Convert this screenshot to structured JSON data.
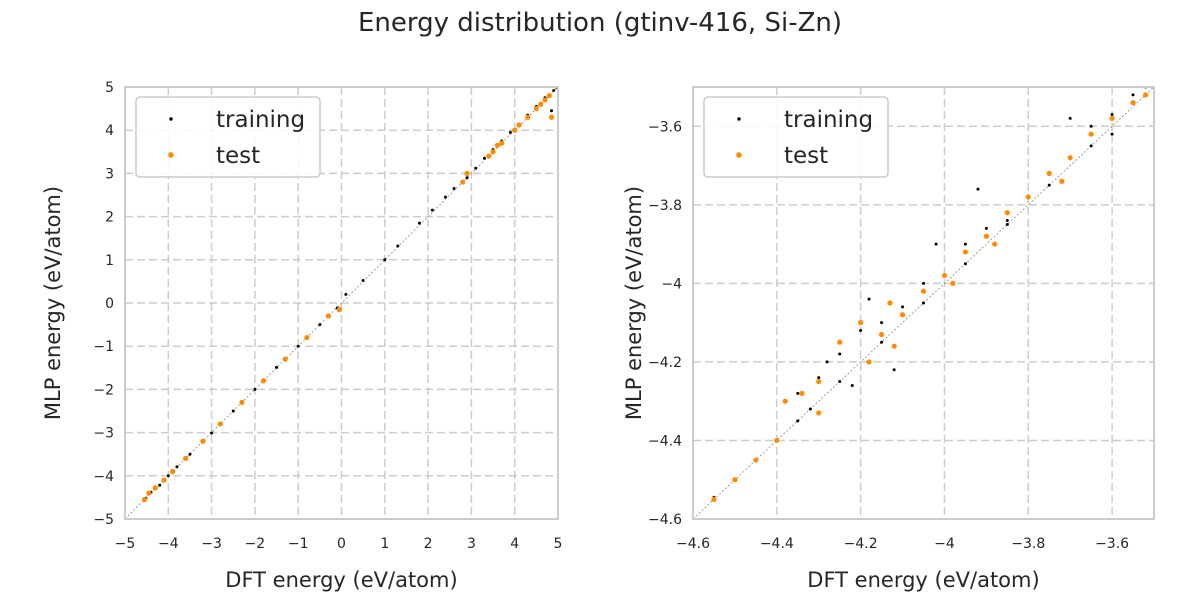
{
  "figure": {
    "title": "Energy distribution (gtinv-416, Si-Zn)"
  },
  "chart_data": [
    {
      "type": "scatter",
      "xlabel": "DFT energy (eV/atom)",
      "ylabel": "MLP energy (eV/atom)",
      "xlim": [
        -5,
        5
      ],
      "ylim": [
        -5,
        5
      ],
      "xticks": [
        -5,
        -4,
        -3,
        -2,
        -1,
        0,
        1,
        2,
        3,
        4,
        5
      ],
      "yticks": [
        -5,
        -4,
        -3,
        -2,
        -1,
        0,
        1,
        2,
        3,
        4,
        5
      ],
      "grid": true,
      "legend_position": "top-left",
      "diagonal_reference": true,
      "series": [
        {
          "name": "training",
          "color": "#000000",
          "points": [
            [
              -4.52,
              -4.52
            ],
            [
              -4.4,
              -4.38
            ],
            [
              -4.2,
              -4.22
            ],
            [
              -4.0,
              -4.0
            ],
            [
              -3.8,
              -3.79
            ],
            [
              -3.5,
              -3.5
            ],
            [
              -3.0,
              -3.01
            ],
            [
              -2.5,
              -2.5
            ],
            [
              -2.0,
              -2.0
            ],
            [
              -1.5,
              -1.49
            ],
            [
              -1.0,
              -1.0
            ],
            [
              -0.5,
              -0.5
            ],
            [
              -0.1,
              -0.12
            ],
            [
              0.1,
              0.2
            ],
            [
              0.5,
              0.52
            ],
            [
              1.0,
              1.0
            ],
            [
              1.3,
              1.32
            ],
            [
              1.8,
              1.85
            ],
            [
              2.1,
              2.15
            ],
            [
              2.4,
              2.45
            ],
            [
              2.6,
              2.65
            ],
            [
              2.9,
              2.9
            ],
            [
              3.1,
              3.12
            ],
            [
              3.3,
              3.35
            ],
            [
              3.5,
              3.55
            ],
            [
              3.7,
              3.75
            ],
            [
              3.9,
              3.95
            ],
            [
              4.1,
              4.1
            ],
            [
              4.3,
              4.35
            ],
            [
              4.5,
              4.55
            ],
            [
              4.6,
              4.62
            ],
            [
              4.7,
              4.75
            ],
            [
              4.8,
              4.78
            ],
            [
              4.9,
              4.92
            ],
            [
              4.95,
              5.0
            ],
            [
              4.85,
              4.45
            ]
          ]
        },
        {
          "name": "test",
          "color": "#ff8c00",
          "points": [
            [
              -4.55,
              -4.55
            ],
            [
              -4.45,
              -4.4
            ],
            [
              -4.3,
              -4.28
            ],
            [
              -4.1,
              -4.1
            ],
            [
              -3.9,
              -3.9
            ],
            [
              -3.6,
              -3.6
            ],
            [
              -3.2,
              -3.2
            ],
            [
              -2.8,
              -2.8
            ],
            [
              -2.3,
              -2.3
            ],
            [
              -1.8,
              -1.8
            ],
            [
              -1.3,
              -1.3
            ],
            [
              -0.8,
              -0.8
            ],
            [
              -0.3,
              -0.3
            ],
            [
              -0.05,
              -0.15
            ],
            [
              2.8,
              2.8
            ],
            [
              2.9,
              3.0
            ],
            [
              3.4,
              3.4
            ],
            [
              3.5,
              3.5
            ],
            [
              3.6,
              3.65
            ],
            [
              3.7,
              3.7
            ],
            [
              4.0,
              4.0
            ],
            [
              4.1,
              4.12
            ],
            [
              4.3,
              4.3
            ],
            [
              4.5,
              4.5
            ],
            [
              4.6,
              4.6
            ],
            [
              4.7,
              4.7
            ],
            [
              4.8,
              4.8
            ],
            [
              4.85,
              4.3
            ]
          ]
        }
      ]
    },
    {
      "type": "scatter",
      "xlabel": "DFT energy (eV/atom)",
      "ylabel": "MLP energy (eV/atom)",
      "xlim": [
        -4.6,
        -3.5
      ],
      "ylim": [
        -4.6,
        -3.5
      ],
      "xticks": [
        -4.6,
        -4.4,
        -4.2,
        -4.0,
        -3.8,
        -3.6
      ],
      "yticks": [
        -4.6,
        -4.4,
        -4.2,
        -4.0,
        -3.8,
        -3.6
      ],
      "grid": true,
      "legend_position": "top-left",
      "diagonal_reference": true,
      "series": [
        {
          "name": "training",
          "color": "#000000",
          "points": [
            [
              -4.55,
              -4.545
            ],
            [
              -4.5,
              -4.5
            ],
            [
              -4.45,
              -4.45
            ],
            [
              -4.4,
              -4.4
            ],
            [
              -4.35,
              -4.28
            ],
            [
              -4.3,
              -4.24
            ],
            [
              -4.28,
              -4.2
            ],
            [
              -4.25,
              -4.18
            ],
            [
              -4.2,
              -4.12
            ],
            [
              -4.15,
              -4.1
            ],
            [
              -4.1,
              -4.06
            ],
            [
              -4.05,
              -4.0
            ],
            [
              -4.0,
              -3.98
            ],
            [
              -3.95,
              -3.9
            ],
            [
              -3.9,
              -3.86
            ],
            [
              -3.85,
              -3.84
            ],
            [
              -3.8,
              -3.78
            ],
            [
              -3.75,
              -3.72
            ],
            [
              -3.7,
              -3.68
            ],
            [
              -3.65,
              -3.6
            ],
            [
              -3.6,
              -3.57
            ],
            [
              -3.55,
              -3.52
            ],
            [
              -3.52,
              -3.5
            ],
            [
              -3.58,
              -3.48
            ],
            [
              -4.35,
              -4.35
            ],
            [
              -4.25,
              -4.25
            ],
            [
              -4.15,
              -4.15
            ],
            [
              -4.05,
              -4.05
            ],
            [
              -3.95,
              -3.95
            ],
            [
              -3.85,
              -3.85
            ],
            [
              -3.75,
              -3.75
            ],
            [
              -3.65,
              -3.65
            ],
            [
              -4.12,
              -4.22
            ],
            [
              -4.18,
              -4.04
            ],
            [
              -4.02,
              -3.9
            ],
            [
              -3.92,
              -3.76
            ],
            [
              -3.7,
              -3.58
            ],
            [
              -4.32,
              -4.32
            ],
            [
              -4.22,
              -4.26
            ],
            [
              -3.6,
              -3.62
            ]
          ]
        },
        {
          "name": "test",
          "color": "#ff8c00",
          "points": [
            [
              -4.55,
              -4.55
            ],
            [
              -4.5,
              -4.5
            ],
            [
              -4.45,
              -4.45
            ],
            [
              -4.4,
              -4.4
            ],
            [
              -4.38,
              -4.3
            ],
            [
              -4.34,
              -4.28
            ],
            [
              -4.3,
              -4.33
            ],
            [
              -4.25,
              -4.15
            ],
            [
              -4.2,
              -4.1
            ],
            [
              -4.18,
              -4.2
            ],
            [
              -4.15,
              -4.13
            ],
            [
              -4.13,
              -4.05
            ],
            [
              -4.1,
              -4.08
            ],
            [
              -4.05,
              -4.02
            ],
            [
              -4.0,
              -3.98
            ],
            [
              -3.95,
              -3.92
            ],
            [
              -3.9,
              -3.88
            ],
            [
              -3.85,
              -3.82
            ],
            [
              -3.8,
              -3.78
            ],
            [
              -3.75,
              -3.72
            ],
            [
              -3.7,
              -3.68
            ],
            [
              -3.65,
              -3.62
            ],
            [
              -3.6,
              -3.58
            ],
            [
              -3.55,
              -3.54
            ],
            [
              -3.52,
              -3.52
            ],
            [
              -4.3,
              -4.25
            ],
            [
              -4.12,
              -4.16
            ],
            [
              -3.98,
              -4.0
            ],
            [
              -3.88,
              -3.9
            ],
            [
              -3.72,
              -3.74
            ]
          ]
        }
      ]
    }
  ]
}
